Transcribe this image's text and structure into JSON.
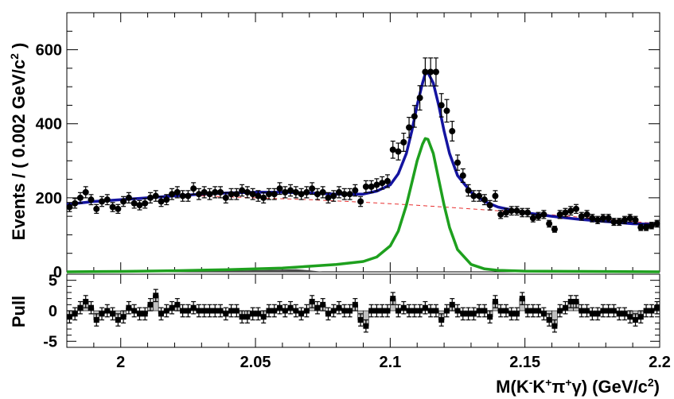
{
  "chart_data": [
    {
      "type": "scatter",
      "panel": "main",
      "ylabel": "Events / ( 0.002 GeV/c² )",
      "ylabel_parts": {
        "main": "Events / ( 0.002 GeV/c",
        "sup": "2",
        "close": " )"
      },
      "xlim": [
        1.98,
        2.2
      ],
      "ylim": [
        0,
        700
      ],
      "yticks": [
        0,
        200,
        400,
        600
      ],
      "yticklabels": [
        "0",
        "200",
        "400",
        "600"
      ],
      "colors": {
        "data": "#000000",
        "total_fit": "#1414a0",
        "signal": "#1ea01e",
        "background": "#e83030",
        "peaking_bkg": "#4a4a4a"
      },
      "series": [
        {
          "name": "data",
          "x": [
            1.981,
            1.983,
            1.985,
            1.987,
            1.989,
            1.991,
            1.993,
            1.995,
            1.997,
            1.999,
            2.001,
            2.003,
            2.005,
            2.007,
            2.009,
            2.011,
            2.013,
            2.015,
            2.017,
            2.019,
            2.021,
            2.023,
            2.025,
            2.027,
            2.029,
            2.031,
            2.033,
            2.035,
            2.037,
            2.039,
            2.041,
            2.043,
            2.045,
            2.047,
            2.049,
            2.051,
            2.053,
            2.055,
            2.057,
            2.059,
            2.061,
            2.063,
            2.065,
            2.067,
            2.069,
            2.071,
            2.073,
            2.075,
            2.077,
            2.079,
            2.081,
            2.083,
            2.085,
            2.087,
            2.089,
            2.091,
            2.093,
            2.095,
            2.097,
            2.099,
            2.101,
            2.103,
            2.105,
            2.107,
            2.109,
            2.111,
            2.113,
            2.115,
            2.117,
            2.119,
            2.121,
            2.123,
            2.125,
            2.127,
            2.129,
            2.131,
            2.133,
            2.135,
            2.137,
            2.139,
            2.141,
            2.143,
            2.145,
            2.147,
            2.149,
            2.151,
            2.153,
            2.155,
            2.157,
            2.159,
            2.161,
            2.163,
            2.165,
            2.167,
            2.169,
            2.171,
            2.173,
            2.175,
            2.177,
            2.179,
            2.181,
            2.183,
            2.185,
            2.187,
            2.189,
            2.191,
            2.193,
            2.195,
            2.197,
            2.199
          ],
          "y": [
            175,
            185,
            200,
            215,
            195,
            170,
            190,
            195,
            175,
            170,
            190,
            200,
            185,
            180,
            185,
            200,
            205,
            190,
            195,
            210,
            215,
            205,
            205,
            225,
            210,
            215,
            210,
            215,
            215,
            200,
            210,
            210,
            220,
            215,
            210,
            205,
            200,
            210,
            210,
            225,
            215,
            220,
            215,
            210,
            215,
            225,
            210,
            215,
            200,
            205,
            215,
            210,
            210,
            220,
            190,
            230,
            230,
            235,
            240,
            245,
            330,
            325,
            350,
            390,
            420,
            470,
            540,
            540,
            540,
            450,
            435,
            380,
            295,
            260,
            220,
            205,
            205,
            195,
            180,
            205,
            155,
            160,
            165,
            165,
            160,
            160,
            145,
            150,
            155,
            130,
            115,
            155,
            160,
            165,
            170,
            150,
            155,
            145,
            140,
            145,
            145,
            135,
            135,
            140,
            145,
            140,
            120,
            120,
            125,
            130
          ],
          "yerr_fraction": 0.07
        },
        {
          "name": "total_fit",
          "x": [
            1.98,
            1.99,
            2.0,
            2.01,
            2.02,
            2.03,
            2.04,
            2.05,
            2.06,
            2.07,
            2.08,
            2.09,
            2.095,
            2.1,
            2.103,
            2.106,
            2.108,
            2.11,
            2.112,
            2.113,
            2.114,
            2.116,
            2.118,
            2.12,
            2.122,
            2.125,
            2.13,
            2.135,
            2.14,
            2.15,
            2.16,
            2.17,
            2.18,
            2.19,
            2.2
          ],
          "y": [
            182,
            190,
            195,
            200,
            205,
            210,
            213,
            215,
            215,
            213,
            210,
            210,
            218,
            235,
            265,
            320,
            380,
            450,
            510,
            535,
            538,
            510,
            450,
            380,
            320,
            260,
            215,
            190,
            175,
            160,
            150,
            142,
            136,
            130,
            128
          ]
        },
        {
          "name": "signal",
          "x": [
            1.98,
            2.0,
            2.02,
            2.04,
            2.06,
            2.07,
            2.08,
            2.09,
            2.095,
            2.1,
            2.103,
            2.106,
            2.108,
            2.11,
            2.112,
            2.113,
            2.114,
            2.116,
            2.118,
            2.12,
            2.122,
            2.125,
            2.13,
            2.135,
            2.14,
            2.15,
            2.2
          ],
          "y": [
            0,
            1,
            3,
            6,
            10,
            15,
            20,
            28,
            40,
            70,
            110,
            180,
            240,
            300,
            345,
            360,
            358,
            320,
            250,
            180,
            120,
            60,
            20,
            8,
            4,
            2,
            0
          ]
        },
        {
          "name": "background",
          "x": [
            2.03,
            2.05,
            2.07,
            2.09,
            2.11,
            2.13,
            2.15,
            2.17,
            2.19,
            2.2
          ],
          "y": [
            205,
            200,
            195,
            188,
            180,
            170,
            160,
            148,
            136,
            130
          ]
        },
        {
          "name": "peaking_bkg",
          "x": [
            2.02,
            2.04,
            2.06,
            2.065,
            2.07,
            2.075
          ],
          "y": [
            0,
            3,
            6,
            7,
            4,
            0
          ]
        }
      ]
    },
    {
      "type": "scatter",
      "panel": "pull",
      "ylabel": "Pull",
      "xlabel": "M(K⁻K⁺π⁺γ) (GeV/c²)",
      "xlabel_parts": {
        "a": "M(K",
        "s1": "-",
        "b": "K",
        "s2": "+",
        "c": "π",
        "s3": "+",
        "d": "γ) (GeV/c",
        "s4": "2",
        "e": ")"
      },
      "xlim": [
        1.98,
        2.2
      ],
      "ylim": [
        -6,
        6
      ],
      "xticks": [
        2.0,
        2.05,
        2.1,
        2.15,
        2.2
      ],
      "xticklabels": [
        "2",
        "2.05",
        "2.1",
        "2.15",
        "2.2"
      ],
      "yticks": [
        -5,
        0,
        5
      ],
      "yticklabels": [
        "-5",
        "0",
        "5"
      ],
      "colors": {
        "bar_fill": "#c0c0c0",
        "marker": "#000000"
      },
      "x": [
        1.981,
        1.983,
        1.985,
        1.987,
        1.989,
        1.991,
        1.993,
        1.995,
        1.997,
        1.999,
        2.001,
        2.003,
        2.005,
        2.007,
        2.009,
        2.011,
        2.013,
        2.015,
        2.017,
        2.019,
        2.021,
        2.023,
        2.025,
        2.027,
        2.029,
        2.031,
        2.033,
        2.035,
        2.037,
        2.039,
        2.041,
        2.043,
        2.045,
        2.047,
        2.049,
        2.051,
        2.053,
        2.055,
        2.057,
        2.059,
        2.061,
        2.063,
        2.065,
        2.067,
        2.069,
        2.071,
        2.073,
        2.075,
        2.077,
        2.079,
        2.081,
        2.083,
        2.085,
        2.087,
        2.089,
        2.091,
        2.093,
        2.095,
        2.097,
        2.099,
        2.101,
        2.103,
        2.105,
        2.107,
        2.109,
        2.111,
        2.113,
        2.115,
        2.117,
        2.119,
        2.121,
        2.123,
        2.125,
        2.127,
        2.129,
        2.131,
        2.133,
        2.135,
        2.137,
        2.139,
        2.141,
        2.143,
        2.145,
        2.147,
        2.149,
        2.151,
        2.153,
        2.155,
        2.157,
        2.159,
        2.161,
        2.163,
        2.165,
        2.167,
        2.169,
        2.171,
        2.173,
        2.175,
        2.177,
        2.179,
        2.181,
        2.183,
        2.185,
        2.187,
        2.189,
        2.191,
        2.193,
        2.195,
        2.197,
        2.199
      ],
      "y": [
        -1.0,
        -0.5,
        0.5,
        1.5,
        0.5,
        -1.5,
        -0.5,
        0,
        -0.5,
        -1.5,
        -1.0,
        0.5,
        0,
        -0.5,
        -0.5,
        1.0,
        2.5,
        -0.5,
        0,
        0.5,
        1.0,
        0,
        0,
        0.5,
        0,
        0,
        0,
        0,
        0,
        -0.5,
        0,
        0,
        -1.0,
        -1.0,
        -0.5,
        -0.5,
        -1.0,
        0,
        0,
        0.5,
        0,
        0.5,
        0,
        -0.5,
        0,
        1.5,
        0.5,
        1.0,
        -0.5,
        0,
        0.5,
        0,
        0,
        1.0,
        -1.5,
        -2.5,
        0,
        0,
        0,
        0,
        2.0,
        0,
        0.5,
        0,
        0,
        0,
        0.5,
        0,
        0,
        -1.5,
        0,
        1.0,
        0,
        -0.5,
        -0.5,
        -0.5,
        0,
        0,
        -1.0,
        1.5,
        0,
        0,
        -0.5,
        -0.5,
        2.0,
        0,
        0,
        0,
        -0.5,
        -1.5,
        -2.5,
        0,
        0.5,
        1.5,
        1.5,
        0,
        0,
        -0.5,
        -0.5,
        0,
        0,
        0,
        -0.5,
        -0.5,
        -1.0,
        -1.5,
        -1.0,
        0,
        0,
        0.5
      ]
    }
  ]
}
